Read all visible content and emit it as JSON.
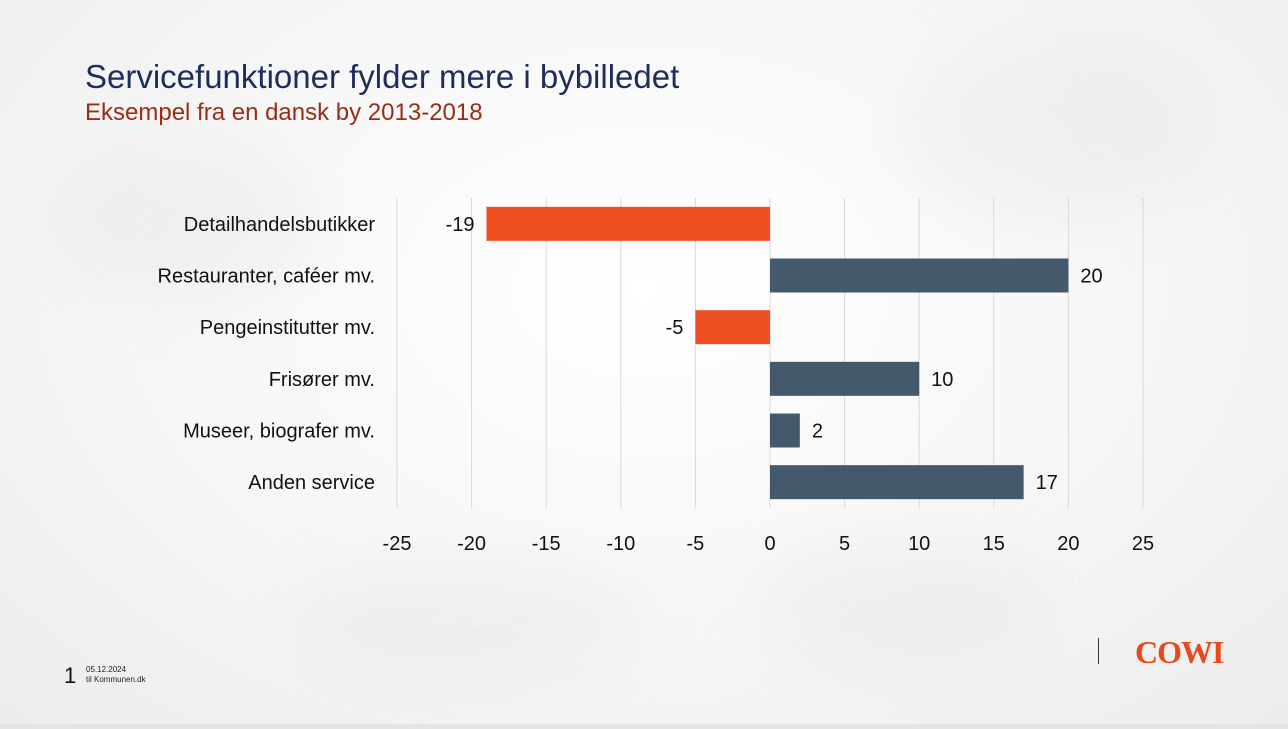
{
  "slide": {
    "title": "Servicefunktioner fylder mere i bybilledet",
    "subtitle": "Eksempel fra en dansk by 2013-2018",
    "page_number": "1",
    "date": "05.12.2024",
    "footer_text": "til Kommunen.dk",
    "logo_text": "COWI"
  },
  "chart_data": {
    "type": "bar",
    "orientation": "horizontal",
    "categories": [
      "Detailhandelsbutikker",
      "Restauranter, caféer mv.",
      "Pengeinstitutter mv.",
      "Frisører mv.",
      "Museer, biografer mv.",
      "Anden service"
    ],
    "values": [
      -19,
      20,
      -5,
      10,
      2,
      17
    ],
    "xlim": [
      -25,
      25
    ],
    "xticks": [
      -25,
      -20,
      -15,
      -10,
      -5,
      0,
      5,
      10,
      15,
      20,
      25
    ],
    "grid": true,
    "colors": {
      "negative": "#f04e23",
      "positive": "#44596b"
    },
    "data_labels": true
  }
}
